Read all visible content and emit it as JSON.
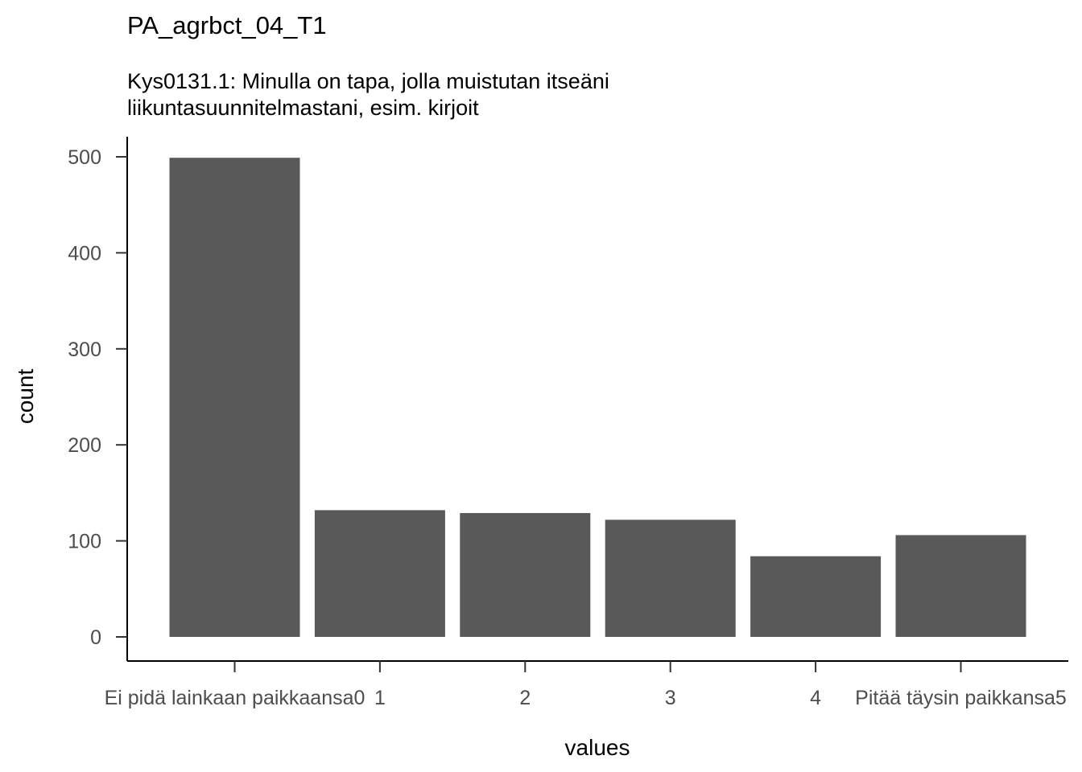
{
  "chart_data": {
    "type": "bar",
    "title": "PA_agrbct_04_T1",
    "subtitle_lines": [
      "Kys0131.1: Minulla on tapa, jolla muistutan itseäni",
      "liikuntasuunnitelmastani, esim. kirjoit"
    ],
    "xlabel": "values",
    "ylabel": "count",
    "categories": [
      "Ei pidä lainkaan paikkaansa0",
      "1",
      "2",
      "3",
      "4",
      "Pitää täysin paikkansa5"
    ],
    "values": [
      499,
      132,
      129,
      122,
      84,
      106
    ],
    "ylim": [
      0,
      525
    ],
    "yticks": [
      0,
      100,
      200,
      300,
      400,
      500
    ],
    "bar_color": "#595959",
    "grid": false,
    "legend": "none"
  }
}
